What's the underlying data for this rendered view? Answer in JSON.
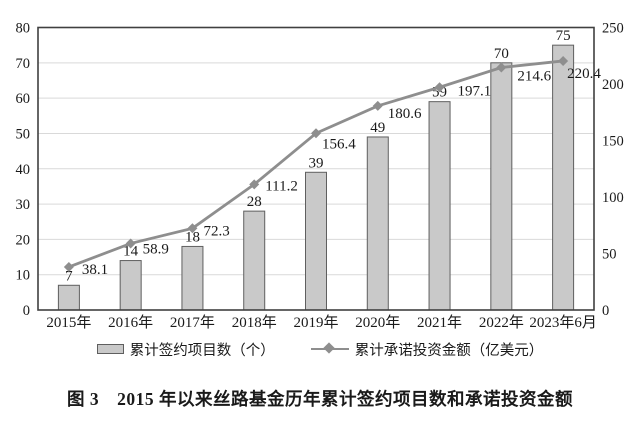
{
  "chart_data": {
    "type": "bar",
    "subtype": "combo-bar-line",
    "categories": [
      "2015年",
      "2016年",
      "2017年",
      "2018年",
      "2019年",
      "2020年",
      "2021年",
      "2022年",
      "2023年6月"
    ],
    "series": [
      {
        "name": "累计签约项目数（个）",
        "type": "bar",
        "axis": "left",
        "values": [
          7,
          14,
          18,
          28,
          39,
          49,
          59,
          70,
          75
        ]
      },
      {
        "name": "累计承诺投资金额（亿美元）",
        "type": "line",
        "axis": "right",
        "values": [
          38.1,
          58.9,
          72.3,
          111.2,
          156.4,
          180.6,
          197.1,
          214.6,
          220.4
        ]
      }
    ],
    "left_axis": {
      "min": 0,
      "max": 80,
      "ticks": [
        0,
        10,
        20,
        30,
        40,
        50,
        60,
        70,
        80
      ]
    },
    "right_axis": {
      "min": 0,
      "max": 250,
      "ticks": [
        0,
        50,
        100,
        150,
        200,
        250
      ]
    },
    "grid": true,
    "data_labels": true,
    "legend_position": "bottom",
    "title": "图 3　2015 年以来丝路基金历年累计签约项目数和承诺投资金额"
  },
  "colors": {
    "bar_fill": "#c9c9c9",
    "bar_border": "#5f5f5f",
    "line": "#8e8e8e",
    "grid": "#d9d9d9",
    "axis": "#404040",
    "text": "#1a1a1a",
    "background": "#ffffff"
  }
}
